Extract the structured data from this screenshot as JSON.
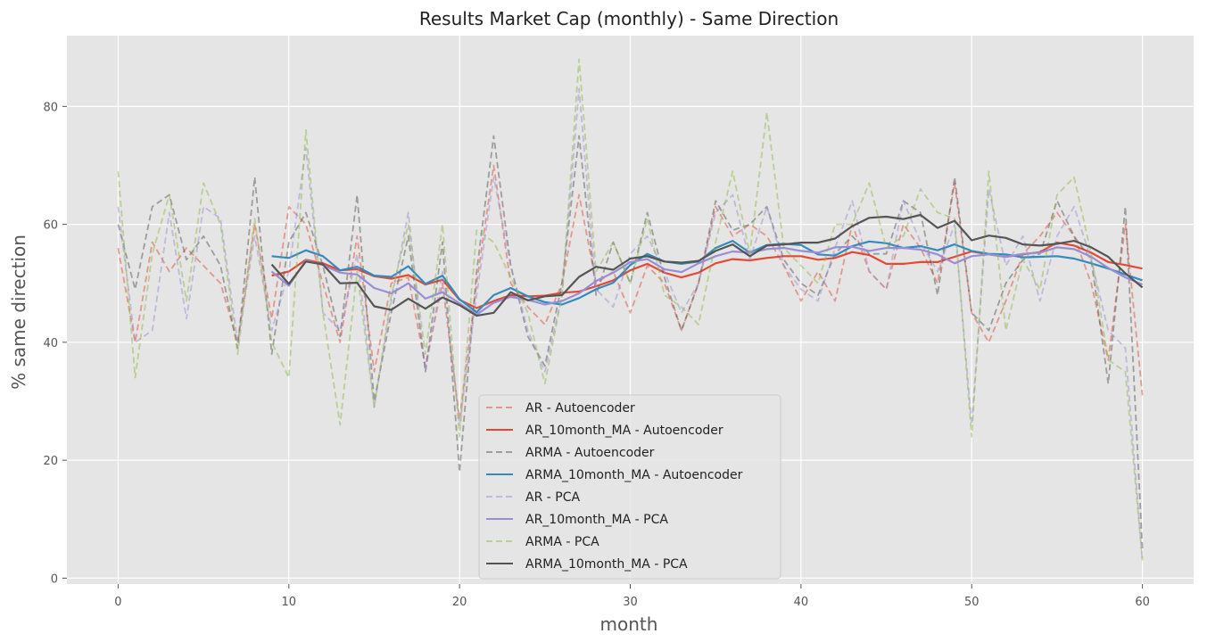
{
  "chart_data": {
    "type": "line",
    "title": "Results Market Cap (monthly) - Same Direction",
    "xlabel": "month",
    "ylabel": "% same direction",
    "xlim": [
      -3,
      63
    ],
    "ylim": [
      -1,
      92
    ],
    "xticks": [
      0,
      10,
      20,
      30,
      40,
      50,
      60
    ],
    "yticks": [
      0,
      20,
      40,
      60,
      80
    ],
    "grid": true,
    "legend_position": "bottom-center",
    "series": [
      {
        "name": "AR - Autoencoder",
        "color": "#E24A33",
        "dashed": true,
        "alpha": 0.5,
        "x_start": 0,
        "values": [
          56,
          40,
          57,
          52,
          56,
          53,
          50,
          40,
          60,
          44,
          63,
          60,
          50,
          40,
          58,
          35,
          50,
          51,
          36,
          50,
          27,
          50,
          70,
          50,
          46,
          43,
          50,
          65,
          50,
          52,
          45,
          53,
          50,
          42,
          50,
          63,
          58,
          60,
          58,
          53,
          47,
          52,
          47,
          60,
          52,
          49,
          60,
          56,
          50,
          67,
          45,
          40,
          47,
          55,
          58,
          62,
          58,
          50,
          37,
          60,
          31
        ]
      },
      {
        "name": "AR_10month_MA - Autoencoder",
        "color": "#E24A33",
        "dashed": false,
        "alpha": 1,
        "x_start": 9,
        "values": [
          51.3,
          52.0,
          54.0,
          53.4,
          52.2,
          52.4,
          51.2,
          50.8,
          51.4,
          49.8,
          50.6,
          47.2,
          45.8,
          47.0,
          48.0,
          47.8,
          47.9,
          48.4,
          48.6,
          49.5,
          50.5,
          52.2,
          53.3,
          51.8,
          51.0,
          51.8,
          53.4,
          54.1,
          53.9,
          54.3,
          54.6,
          54.6,
          54.0,
          54.3,
          55.3,
          54.8,
          53.3,
          53.3,
          53.6,
          53.6,
          54.5,
          55.4,
          54.9,
          54.5,
          54.9,
          55.3,
          56.9,
          56.4,
          55.2,
          53.6,
          53.1,
          52.5
        ]
      },
      {
        "name": "ARMA - Autoencoder",
        "color": "#555555",
        "dashed": true,
        "alpha": 0.5,
        "x_start": 0,
        "values": [
          60,
          49,
          63,
          65,
          54,
          58,
          53,
          39,
          68,
          38,
          57,
          62,
          53,
          41,
          65,
          30,
          45,
          58,
          35,
          57,
          18,
          52,
          75,
          53,
          41,
          36,
          50,
          75,
          48,
          57,
          50,
          62,
          51,
          42,
          50,
          64,
          59,
          60,
          63,
          54,
          50,
          48,
          55,
          58,
          55,
          55,
          64,
          62,
          48,
          68,
          45,
          42,
          50,
          54,
          55,
          64,
          58,
          54,
          33,
          63,
          5
        ]
      },
      {
        "name": "ARMA_10month_MA - Autoencoder",
        "color": "#348ABD",
        "dashed": false,
        "alpha": 1,
        "x_start": 9,
        "values": [
          54.6,
          54.3,
          55.6,
          54.6,
          52.2,
          52.8,
          51.3,
          51.1,
          52.9,
          49.9,
          51.3,
          47.3,
          45.1,
          48.0,
          49.2,
          47.8,
          46.8,
          46.4,
          47.5,
          49.0,
          50.1,
          53.1,
          55.0,
          53.7,
          53.3,
          53.7,
          56.0,
          57.2,
          55.2,
          56.5,
          56.7,
          56.5,
          54.9,
          54.7,
          56.3,
          57.1,
          56.8,
          56.0,
          56.3,
          55.6,
          56.6,
          55.5,
          55.0,
          54.9,
          54.4,
          54.5,
          54.6,
          54.2,
          53.4,
          52.5,
          51.5,
          50.5
        ]
      },
      {
        "name": "AR - PCA",
        "color": "#988ED5",
        "dashed": true,
        "alpha": 0.5,
        "x_start": 0,
        "values": [
          63,
          40,
          42,
          62,
          44,
          63,
          61,
          40,
          58,
          42,
          52,
          73,
          45,
          42,
          55,
          29,
          47,
          62,
          35,
          52,
          26,
          48,
          68,
          53,
          42,
          35,
          48,
          83,
          49,
          46,
          55,
          58,
          52,
          45,
          50,
          62,
          65,
          54,
          63,
          53,
          49,
          47,
          56,
          64,
          52,
          49,
          64,
          57,
          52,
          60,
          26,
          66,
          53,
          58,
          47,
          58,
          63,
          54,
          42,
          39,
          3
        ]
      },
      {
        "name": "AR_10month_MA - PCA",
        "color": "#988ED5",
        "dashed": false,
        "alpha": 1,
        "x_start": 9,
        "values": [
          52.0,
          49.6,
          53.9,
          53.1,
          51.8,
          51.5,
          49.2,
          48.3,
          50.0,
          47.4,
          48.5,
          46.6,
          44.7,
          46.7,
          47.7,
          47.2,
          46.4,
          47.0,
          48.3,
          50.4,
          51.8,
          53.6,
          54.1,
          52.4,
          51.9,
          53.4,
          54.6,
          55.4,
          55.2,
          55.8,
          56.0,
          55.5,
          55.2,
          56.1,
          56.2,
          55.5,
          56.0,
          56.0,
          55.7,
          54.9,
          53.4,
          54.6,
          54.9,
          54.5,
          55.0,
          55.2,
          56.1,
          55.8,
          54.5,
          52.6,
          51.0,
          49.8
        ]
      },
      {
        "name": "ARMA - PCA",
        "color": "#8EBA42",
        "dashed": true,
        "alpha": 0.5,
        "x_start": 0,
        "values": [
          69,
          34,
          55,
          65,
          47,
          67,
          60,
          38,
          61,
          40,
          34,
          76,
          45,
          26,
          52,
          29,
          48,
          60,
          38,
          60,
          24,
          59,
          57,
          51,
          45,
          33,
          48,
          88,
          52,
          57,
          50,
          61,
          48,
          46,
          43,
          57,
          69,
          55,
          79,
          56,
          53,
          50,
          60,
          60,
          67,
          56,
          58,
          66,
          62,
          61,
          24,
          69,
          42,
          54,
          49,
          65,
          68,
          55,
          37,
          35,
          3
        ]
      },
      {
        "name": "ARMA_10month_MA - PCA",
        "color": "#555555",
        "dashed": false,
        "alpha": 1,
        "x_start": 9,
        "values": [
          53.2,
          49.9,
          53.7,
          53.2,
          50.0,
          50.1,
          46.1,
          45.5,
          47.4,
          45.7,
          47.6,
          46.3,
          44.5,
          45.0,
          48.5,
          47.1,
          47.8,
          48.0,
          51.1,
          52.8,
          52.3,
          54.2,
          54.6,
          53.7,
          53.5,
          53.8,
          55.5,
          56.6,
          54.6,
          56.4,
          56.6,
          56.9,
          56.9,
          57.6,
          59.7,
          61.1,
          61.3,
          60.9,
          61.6,
          59.4,
          60.6,
          57.3,
          58.1,
          57.7,
          56.6,
          56.4,
          56.7,
          57.2,
          56.1,
          54.5,
          51.7,
          49.3
        ]
      }
    ]
  }
}
